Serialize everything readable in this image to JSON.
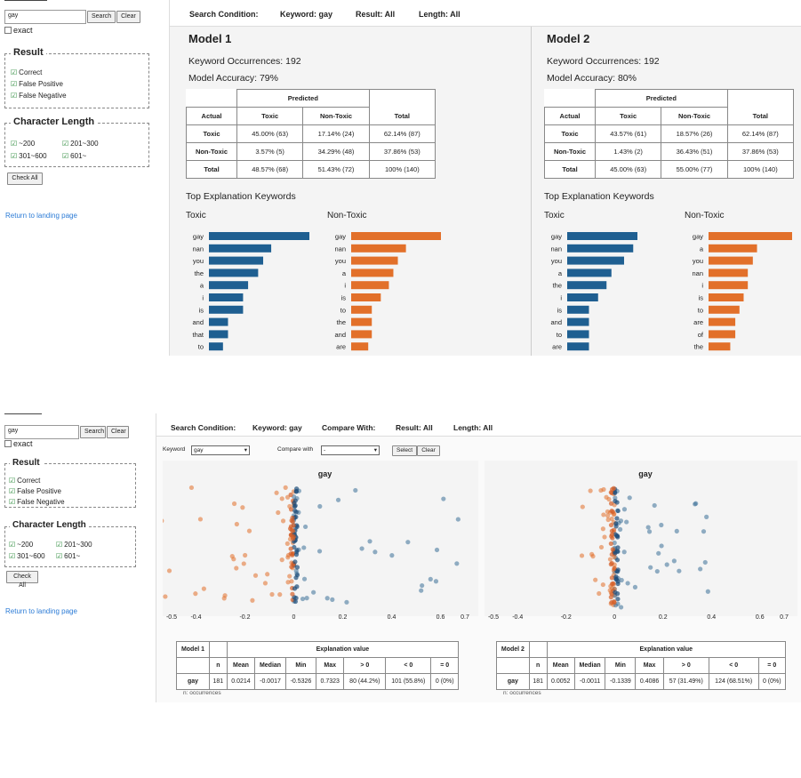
{
  "panel1": {
    "search_value": "gay",
    "search_button": "Search",
    "clear_button": "Clear",
    "exact_label": "exact",
    "result_title": "Result",
    "result_options": [
      "Correct",
      "False Positive",
      "False Negative"
    ],
    "length_title": "Character Length",
    "length_options": [
      "~200",
      "201~300",
      "301~600",
      "601~"
    ],
    "check_all": "Check All",
    "return_link": "Return to landing page",
    "condition": {
      "label": "Search Condition:",
      "keyword": "Keyword:  gay",
      "result": "Result:  All",
      "length": "Length:  All"
    },
    "models": [
      {
        "title": "Model 1",
        "occurrences": "Keyword Occurrences:   192",
        "accuracy": "Model Accuracy:   79%",
        "table": {
          "predicted": "Predicted",
          "headers": [
            "Actual",
            "Toxic",
            "Non-Toxic",
            "Total"
          ],
          "rows": [
            [
              "Toxic",
              "45.00% (63)",
              "17.14% (24)",
              "62.14% (87)"
            ],
            [
              "Non-Toxic",
              "3.57% (5)",
              "34.29% (48)",
              "37.86% (53)"
            ],
            [
              "Total",
              "48.57% (68)",
              "51.43% (72)",
              "100% (140)"
            ]
          ]
        },
        "kw_title": "Top Explanation Keywords",
        "toxic_label": "Toxic",
        "nontoxic_label": "Non-Toxic",
        "toxic_words": [
          "gay",
          "nan",
          "you",
          "the",
          "a",
          "i",
          "is",
          "and",
          "that",
          "to"
        ],
        "toxic_values": [
          1.0,
          0.62,
          0.54,
          0.49,
          0.39,
          0.34,
          0.34,
          0.19,
          0.19,
          0.14
        ],
        "nontoxic_words": [
          "gay",
          "nan",
          "you",
          "a",
          "i",
          "is",
          "to",
          "the",
          "and",
          "are"
        ],
        "nontoxic_values": [
          1.0,
          0.61,
          0.52,
          0.47,
          0.42,
          0.33,
          0.23,
          0.23,
          0.23,
          0.19
        ]
      },
      {
        "title": "Model 2",
        "occurrences": "Keyword Occurrences:   192",
        "accuracy": "Model Accuracy:   80%",
        "table": {
          "predicted": "Predicted",
          "headers": [
            "Actual",
            "Toxic",
            "Non-Toxic",
            "Total"
          ],
          "rows": [
            [
              "Toxic",
              "43.57% (61)",
              "18.57% (26)",
              "62.14% (87)"
            ],
            [
              "Non-Toxic",
              "1.43% (2)",
              "36.43% (51)",
              "37.86% (53)"
            ],
            [
              "Total",
              "45.00% (63)",
              "55.00% (77)",
              "100% (140)"
            ]
          ]
        },
        "kw_title": "Top Explanation Keywords",
        "toxic_label": "Toxic",
        "nontoxic_label": "Non-Toxic",
        "toxic_words": [
          "gay",
          "nan",
          "you",
          "a",
          "the",
          "i",
          "is",
          "and",
          "to",
          "are"
        ],
        "toxic_values": [
          1.0,
          0.94,
          0.81,
          0.63,
          0.56,
          0.44,
          0.31,
          0.31,
          0.31,
          0.31
        ],
        "nontoxic_words": [
          "gay",
          "a",
          "you",
          "nan",
          "i",
          "is",
          "to",
          "are",
          "of",
          "the"
        ],
        "nontoxic_values": [
          1.0,
          0.58,
          0.53,
          0.47,
          0.47,
          0.42,
          0.37,
          0.32,
          0.32,
          0.26
        ]
      }
    ]
  },
  "panel2": {
    "search_value": "gay",
    "search_button": "Search",
    "clear_button": "Clear",
    "exact_label": "exact",
    "result_title": "Result",
    "result_options": [
      "Correct",
      "False Positive",
      "False Negative"
    ],
    "length_title": "Character Length",
    "length_options": [
      "~200",
      "201~300",
      "301~600",
      "601~"
    ],
    "check_all": "Check All",
    "return_link": "Return to landing page",
    "condition": {
      "label": "Search Condition:",
      "keyword": "Keyword:  gay",
      "compare": "Compare With:",
      "result": "Result:  All",
      "length": "Length:  All"
    },
    "keyword_label": "Keyword",
    "keyword_select": "gay",
    "compare_label": "Compare with",
    "compare_select": "-",
    "select_button": "Select",
    "clear_button2": "Clear",
    "plot_title": "gay",
    "axis_ticks_left": [
      "-0.5",
      "-0.4",
      "-0.2",
      "0",
      "0.2",
      "0.4",
      "0.6",
      "0.7"
    ],
    "axis_ticks_right": [
      "-0.5",
      "-0.4",
      "-0.2",
      "0",
      "0.2",
      "0.4",
      "0.6",
      "0.7"
    ],
    "stats": [
      {
        "model": "Model 1",
        "header_group": "Explanation value",
        "headers": [
          "n",
          "Mean",
          "Median",
          "Min",
          "Max",
          "> 0",
          "< 0",
          "= 0"
        ],
        "row": [
          "gay",
          "181",
          "0.0214",
          "-0.0017",
          "-0.5326",
          "0.7323",
          "80 (44.2%)",
          "101 (55.8%)",
          "0 (0%)"
        ]
      },
      {
        "model": "Model 2",
        "header_group": "Explanation value",
        "headers": [
          "n",
          "Mean",
          "Median",
          "Min",
          "Max",
          "> 0",
          "< 0",
          "= 0"
        ],
        "row": [
          "gay",
          "181",
          "0.0052",
          "-0.0011",
          "-0.1339",
          "0.4086",
          "57 (31.49%)",
          "124 (68.51%)",
          "0 (0%)"
        ]
      }
    ],
    "footnote": "n: occurrences"
  },
  "colors": {
    "toxic": "#1f5f91",
    "nontoxic": "#e2702a",
    "link": "#2b7bd6"
  }
}
